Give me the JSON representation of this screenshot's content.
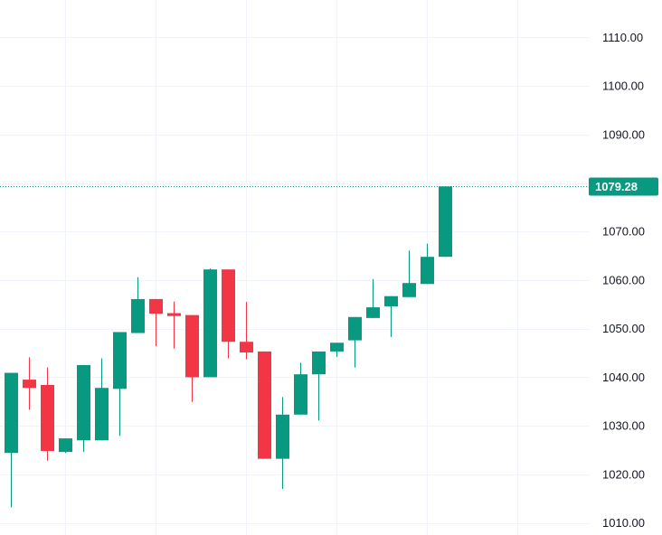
{
  "chart_data": {
    "type": "candlestick",
    "y_axis": {
      "position": "right",
      "ticks": [
        1010,
        1020,
        1030,
        1040,
        1050,
        1060,
        1070,
        1090,
        1100,
        1110
      ],
      "tick_labels": [
        "1010.00",
        "1020.00",
        "1030.00",
        "1040.00",
        "1050.00",
        "1060.00",
        "1070.00",
        "1090.00",
        "1100.00",
        "1110.00"
      ],
      "ylim": [
        1007.5,
        1117.7
      ]
    },
    "grid": true,
    "last_price": {
      "value": 1079.28,
      "label": "1079.28"
    },
    "colors": {
      "up": "#089981",
      "down": "#f23645",
      "grid": "#f0f3fa",
      "text": "#131722",
      "price_line": "#089981"
    },
    "candles": [
      {
        "open": 1024.4,
        "high": 1040.9,
        "low": 1013.2,
        "close": 1040.9
      },
      {
        "open": 1039.5,
        "high": 1044.1,
        "low": 1033.3,
        "close": 1037.8
      },
      {
        "open": 1038.4,
        "high": 1042.0,
        "low": 1022.8,
        "close": 1024.8
      },
      {
        "open": 1024.6,
        "high": 1027.4,
        "low": 1024.4,
        "close": 1027.4
      },
      {
        "open": 1027.0,
        "high": 1042.5,
        "low": 1024.6,
        "close": 1042.5
      },
      {
        "open": 1027.0,
        "high": 1043.9,
        "low": 1027.0,
        "close": 1037.8
      },
      {
        "open": 1037.6,
        "high": 1049.3,
        "low": 1027.9,
        "close": 1049.3
      },
      {
        "open": 1049.1,
        "high": 1060.6,
        "low": 1049.1,
        "close": 1056.1
      },
      {
        "open": 1056.1,
        "high": 1056.1,
        "low": 1046.4,
        "close": 1053.1
      },
      {
        "open": 1053.2,
        "high": 1055.6,
        "low": 1045.9,
        "close": 1052.6
      },
      {
        "open": 1052.8,
        "high": 1052.8,
        "low": 1034.9,
        "close": 1040.0
      },
      {
        "open": 1040.0,
        "high": 1062.4,
        "low": 1040.0,
        "close": 1062.2
      },
      {
        "open": 1062.2,
        "high": 1062.2,
        "low": 1043.9,
        "close": 1047.3
      },
      {
        "open": 1047.3,
        "high": 1055.5,
        "low": 1043.7,
        "close": 1045.1
      },
      {
        "open": 1045.3,
        "high": 1045.3,
        "low": 1023.2,
        "close": 1023.2
      },
      {
        "open": 1023.2,
        "high": 1035.9,
        "low": 1017.0,
        "close": 1032.3
      },
      {
        "open": 1032.3,
        "high": 1043.0,
        "low": 1032.3,
        "close": 1040.6
      },
      {
        "open": 1040.6,
        "high": 1045.3,
        "low": 1031.1,
        "close": 1045.3
      },
      {
        "open": 1045.3,
        "high": 1047.1,
        "low": 1044.2,
        "close": 1047.1
      },
      {
        "open": 1047.6,
        "high": 1052.4,
        "low": 1042.0,
        "close": 1052.4
      },
      {
        "open": 1052.2,
        "high": 1060.2,
        "low": 1052.2,
        "close": 1054.4
      },
      {
        "open": 1054.6,
        "high": 1056.7,
        "low": 1048.3,
        "close": 1056.7
      },
      {
        "open": 1056.5,
        "high": 1066.1,
        "low": 1056.5,
        "close": 1059.4
      },
      {
        "open": 1059.2,
        "high": 1067.5,
        "low": 1059.2,
        "close": 1064.8
      },
      {
        "open": 1064.8,
        "high": 1079.3,
        "low": 1064.8,
        "close": 1079.3
      }
    ]
  }
}
